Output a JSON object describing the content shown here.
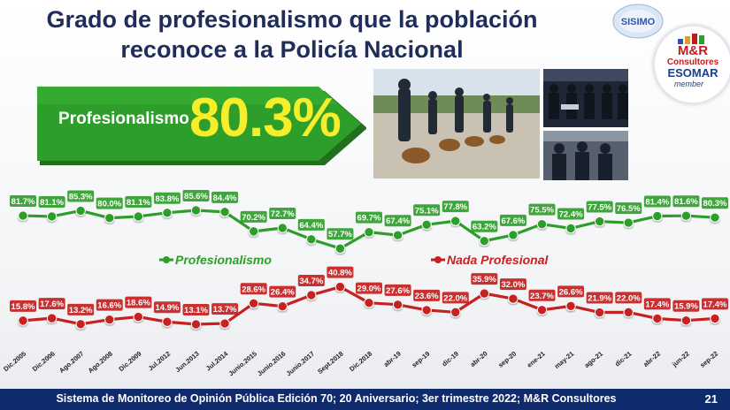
{
  "title": {
    "line1": "Grado de profesionalismo que la población",
    "line2": "reconoce a la Policía Nacional"
  },
  "logos": {
    "sisimo": "SISIMO",
    "mr_name": "M&R",
    "mr_sub": "Consultores",
    "esomar": "ESOMAR",
    "member": "member"
  },
  "banner": {
    "label": "Profesionalismo",
    "value": "80.3%",
    "color": "#2e9e2a",
    "value_color": "#f7ee2b"
  },
  "footer": {
    "text": "Sistema de Monitoreo de Opinión Pública Edición 70; 20 Aniversario; 3er trimestre 2022; M&R Consultores",
    "page": "21"
  },
  "chart_data": {
    "type": "line",
    "categories": [
      "Dic.2005",
      "Dic.2006",
      "Ago.2007",
      "Ago.2008",
      "Dic.2009",
      "Jul.2012",
      "Jun.2013",
      "Jul.2014",
      "Junio.2015",
      "Junio.2016",
      "Junio.2017",
      "Sept.2018",
      "Dic.2018",
      "abr-19",
      "sep-19",
      "dic-19",
      "abr-20",
      "sep-20",
      "ene-21",
      "may-21",
      "ago-21",
      "dic-21",
      "abr-22",
      "jun-22",
      "sep-22"
    ],
    "series": [
      {
        "name": "Profesionalismo",
        "color": "#2e9e2a",
        "values": [
          81.7,
          81.1,
          85.3,
          80.0,
          81.1,
          83.8,
          85.6,
          84.4,
          70.2,
          72.7,
          64.4,
          57.7,
          69.7,
          67.4,
          75.1,
          77.8,
          63.2,
          67.6,
          75.5,
          72.4,
          77.5,
          76.5,
          81.4,
          81.6,
          80.3
        ],
        "labels": [
          "81.7%",
          "81.1%",
          "85.3%",
          "80.0%",
          "81.1%",
          "83.8%",
          "85.6%",
          "84.4%",
          "70.2%",
          "72.7%",
          "64.4%",
          "57.7%",
          "69.7%",
          "67.4%",
          "75.1%",
          "77.8%",
          "63.2%",
          "67.6%",
          "75.5%",
          "72.4%",
          "77.5%",
          "76.5%",
          "81.4%",
          "81.6%",
          "80.3%"
        ]
      },
      {
        "name": "Nada Profesional",
        "color": "#c62020",
        "values": [
          15.8,
          17.6,
          13.2,
          16.6,
          18.6,
          14.9,
          13.1,
          13.7,
          28.6,
          26.4,
          34.7,
          40.8,
          29.0,
          27.6,
          23.6,
          22.0,
          35.9,
          32.0,
          23.7,
          26.6,
          21.9,
          22.0,
          17.4,
          15.9,
          17.4
        ],
        "labels": [
          "15.8%",
          "17.6%",
          "13.2%",
          "16.6%",
          "18.6%",
          "14.9%",
          "13.1%",
          "13.7%",
          "28.6%",
          "26.4%",
          "34.7%",
          "40.8%",
          "29.0%",
          "27.6%",
          "23.6%",
          "22.0%",
          "35.9%",
          "32.0%",
          "23.7%",
          "26.6%",
          "21.9%",
          "22.0%",
          "17.4%",
          "15.9%",
          "17.4%"
        ]
      }
    ],
    "legend_placement": "inline-center",
    "grid": false
  }
}
